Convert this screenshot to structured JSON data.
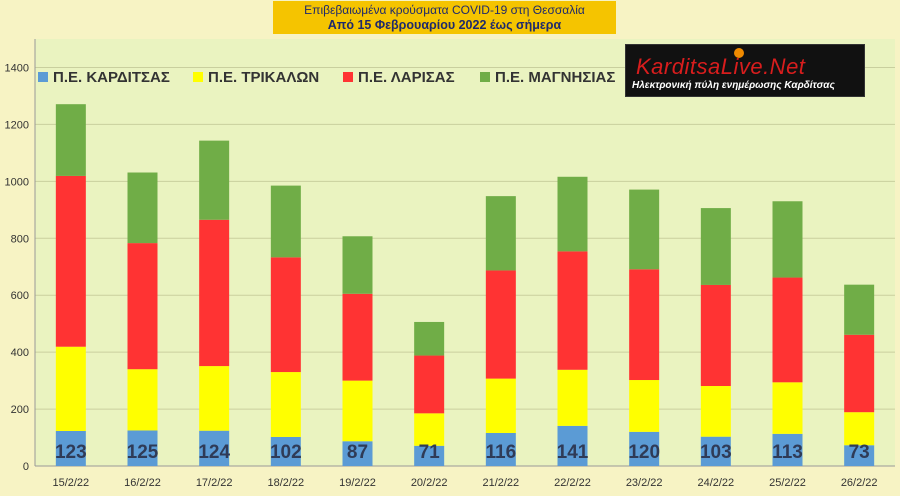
{
  "header": {
    "line1": "Επιβεβαιωμένα κρούσματα COVID-19 στη Θεσσαλία",
    "line2": "Από 15 Φεβρουαρίου 2022 έως σήμερα"
  },
  "logo": {
    "brand": "KarditsaLive.Net",
    "tagline": "Ηλεκτρονική πύλη ενημέρωσης Καρδίτσας"
  },
  "colors": {
    "background": "#f7f3c4",
    "plot_background": "#eaf3c0",
    "title_box": "#f5c400"
  },
  "chart_data": {
    "type": "bar",
    "stacked": true,
    "title": "",
    "xlabel": "",
    "ylabel": "",
    "ylim": [
      0,
      1500
    ],
    "yticks": [
      0,
      200,
      400,
      600,
      800,
      1000,
      1200,
      1400
    ],
    "grid": true,
    "legend_position": "top-left",
    "categories": [
      "15/2/22",
      "16/2/22",
      "17/2/22",
      "18/2/22",
      "19/2/22",
      "20/2/22",
      "21/2/22",
      "22/2/22",
      "23/2/22",
      "24/2/22",
      "25/2/22",
      "26/2/22"
    ],
    "series": [
      {
        "name": "Π.Ε. ΚΑΡΔΙΤΣΑΣ",
        "color": "#5b9bd5",
        "values": [
          123,
          125,
          124,
          102,
          87,
          71,
          116,
          141,
          120,
          103,
          113,
          73
        ],
        "labeled": true
      },
      {
        "name": "Π.Ε. ΤΡΙΚΑΛΩΝ",
        "color": "#ffff00",
        "values": [
          296,
          215,
          227,
          228,
          213,
          114,
          191,
          197,
          182,
          178,
          181,
          116
        ]
      },
      {
        "name": "Π.Ε. ΛΑΡΙΣΑΣ",
        "color": "#ff3333",
        "values": [
          600,
          443,
          514,
          403,
          305,
          203,
          380,
          416,
          389,
          355,
          368,
          272
        ]
      },
      {
        "name": "Π.Ε. ΜΑΓΝΗΣΙΑΣ",
        "color": "#70ad47",
        "values": [
          252,
          248,
          278,
          252,
          202,
          118,
          261,
          262,
          280,
          270,
          268,
          176
        ]
      }
    ]
  }
}
